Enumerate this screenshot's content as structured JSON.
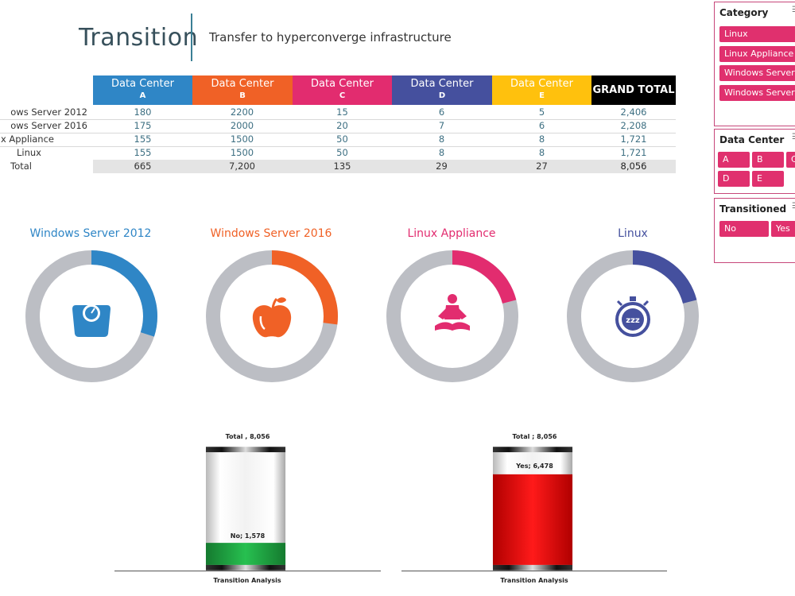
{
  "header": {
    "title": "Transition",
    "subtitle": "Transfer  to hyperconverge infrastructure"
  },
  "table": {
    "columns": [
      {
        "line1": "Data Center",
        "line2": "A",
        "color": "#2f86c6"
      },
      {
        "line1": "Data Center",
        "line2": "B",
        "color": "#f06126"
      },
      {
        "line1": "Data Center",
        "line2": "C",
        "color": "#e22c6f"
      },
      {
        "line1": "Data Center",
        "line2": "D",
        "color": "#45509e"
      },
      {
        "line1": "Data Center",
        "line2": "E",
        "color": "#ffc10d"
      }
    ],
    "grand_total_label": "GRAND TOTAL",
    "rows": [
      {
        "label": "ows Server 2012",
        "values": [
          "180",
          "2200",
          "15",
          "6",
          "5"
        ],
        "total": "2,406"
      },
      {
        "label": "ows Server 2016",
        "values": [
          "175",
          "2000",
          "20",
          "7",
          "6"
        ],
        "total": "2,208"
      },
      {
        "label": "ux Appliance",
        "values": [
          "155",
          "1500",
          "50",
          "8",
          "8"
        ],
        "total": "1,721"
      },
      {
        "label": "Linux",
        "values": [
          "155",
          "1500",
          "50",
          "8",
          "8"
        ],
        "total": "1,721"
      }
    ],
    "total_row": {
      "label": "Total",
      "values": [
        "665",
        "7,200",
        "135",
        "29",
        "27"
      ],
      "total": "8,056"
    }
  },
  "donuts": [
    {
      "title": "Windows Server 2012",
      "color": "#2f86c6",
      "fraction": 0.3,
      "icon": "scale-icon"
    },
    {
      "title": "Windows Server 2016",
      "color": "#f06126",
      "fraction": 0.27,
      "icon": "apple-icon"
    },
    {
      "title": "Linux Appliance",
      "color": "#e22c6f",
      "fraction": 0.21,
      "icon": "meditation-icon"
    },
    {
      "title": "Linux",
      "color": "#45509e",
      "fraction": 0.21,
      "icon": "stopwatch-sleep-icon"
    }
  ],
  "cylinders": [
    {
      "total_text": "Total ,  8,056",
      "fill_text": "No;  1,578",
      "fill_color": "#1fa843",
      "fill_fraction": 0.196,
      "caption": "Transition Analysis"
    },
    {
      "total_text": "Total ;  8,056",
      "fill_text": "Yes;  6,478",
      "fill_color": "#ee1111",
      "fill_fraction": 0.804,
      "caption": "Transition Analysis"
    }
  ],
  "slicers": {
    "category": {
      "title": "Category",
      "items": [
        "Linux",
        "Linux Appliance",
        "Windows Server ...",
        "Windows Server ..."
      ]
    },
    "datacenter": {
      "title": "Data Center",
      "items": [
        "A",
        "B",
        "C",
        "D",
        "E"
      ]
    },
    "transitioned": {
      "title": "Transitioned",
      "items": [
        "No",
        "Yes"
      ]
    }
  },
  "colors": {
    "accent": "#e0306e",
    "ring_gray": "#bcbec4"
  }
}
